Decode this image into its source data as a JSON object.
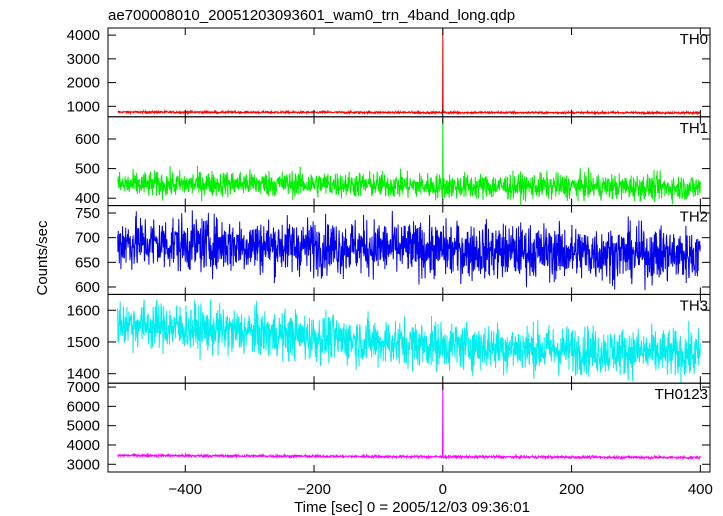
{
  "chart_data": {
    "type": "line",
    "title": "ae700008010_20051203093601_wam0_trn_4band_long.qdp",
    "xlabel": "Time [sec] 0 = 2005/12/03 09:36:01",
    "ylabel": "Counts/sec",
    "xlim": [
      -520,
      415
    ],
    "x_ticks": [
      -400,
      -200,
      0,
      200,
      400
    ],
    "x_tick_labels": [
      "−400",
      "−200",
      "0",
      "200",
      "400"
    ],
    "grid": false,
    "panels": [
      {
        "name": "TH0",
        "color": "#ff0000",
        "ylim": [
          560,
          4300
        ],
        "yticks": [
          1000,
          2000,
          3000,
          4000
        ],
        "baseline_x": [
          -505,
          -300,
          -100,
          0,
          200,
          400
        ],
        "baseline_y": [
          760,
          750,
          745,
          740,
          735,
          730
        ],
        "noise": 22,
        "spike": {
          "x": 0,
          "peak": 4300
        }
      },
      {
        "name": "TH1",
        "color": "#00ee00",
        "ylim": [
          375,
          675
        ],
        "yticks": [
          400,
          500,
          600
        ],
        "baseline_x": [
          -505,
          -300,
          -100,
          0,
          200,
          400
        ],
        "baseline_y": [
          445,
          450,
          445,
          440,
          440,
          435
        ],
        "noise": 22,
        "spike": {
          "x": 0,
          "peak": 670
        }
      },
      {
        "name": "TH2",
        "color": "#0000ee",
        "ylim": [
          585,
          765
        ],
        "yticks": [
          600,
          650,
          700,
          750
        ],
        "baseline_x": [
          -505,
          -300,
          -100,
          0,
          200,
          400
        ],
        "baseline_y": [
          690,
          685,
          680,
          675,
          670,
          665
        ],
        "noise": 28,
        "spike": null
      },
      {
        "name": "TH3",
        "color": "#00eeee",
        "ylim": [
          1370,
          1650
        ],
        "yticks": [
          1400,
          1500,
          1600
        ],
        "baseline_x": [
          -505,
          -300,
          -100,
          0,
          200,
          400
        ],
        "baseline_y": [
          1560,
          1530,
          1500,
          1490,
          1475,
          1460
        ],
        "noise": 38,
        "spike": null
      },
      {
        "name": "TH0123",
        "color": "#ff00ff",
        "ylim": [
          2600,
          7200
        ],
        "yticks": [
          3000,
          4000,
          5000,
          6000,
          7000
        ],
        "baseline_x": [
          -505,
          -300,
          -100,
          0,
          200,
          400
        ],
        "baseline_y": [
          3460,
          3430,
          3400,
          3390,
          3370,
          3350
        ],
        "noise": 35,
        "spike": {
          "x": 0,
          "peak": 7150
        }
      }
    ]
  }
}
